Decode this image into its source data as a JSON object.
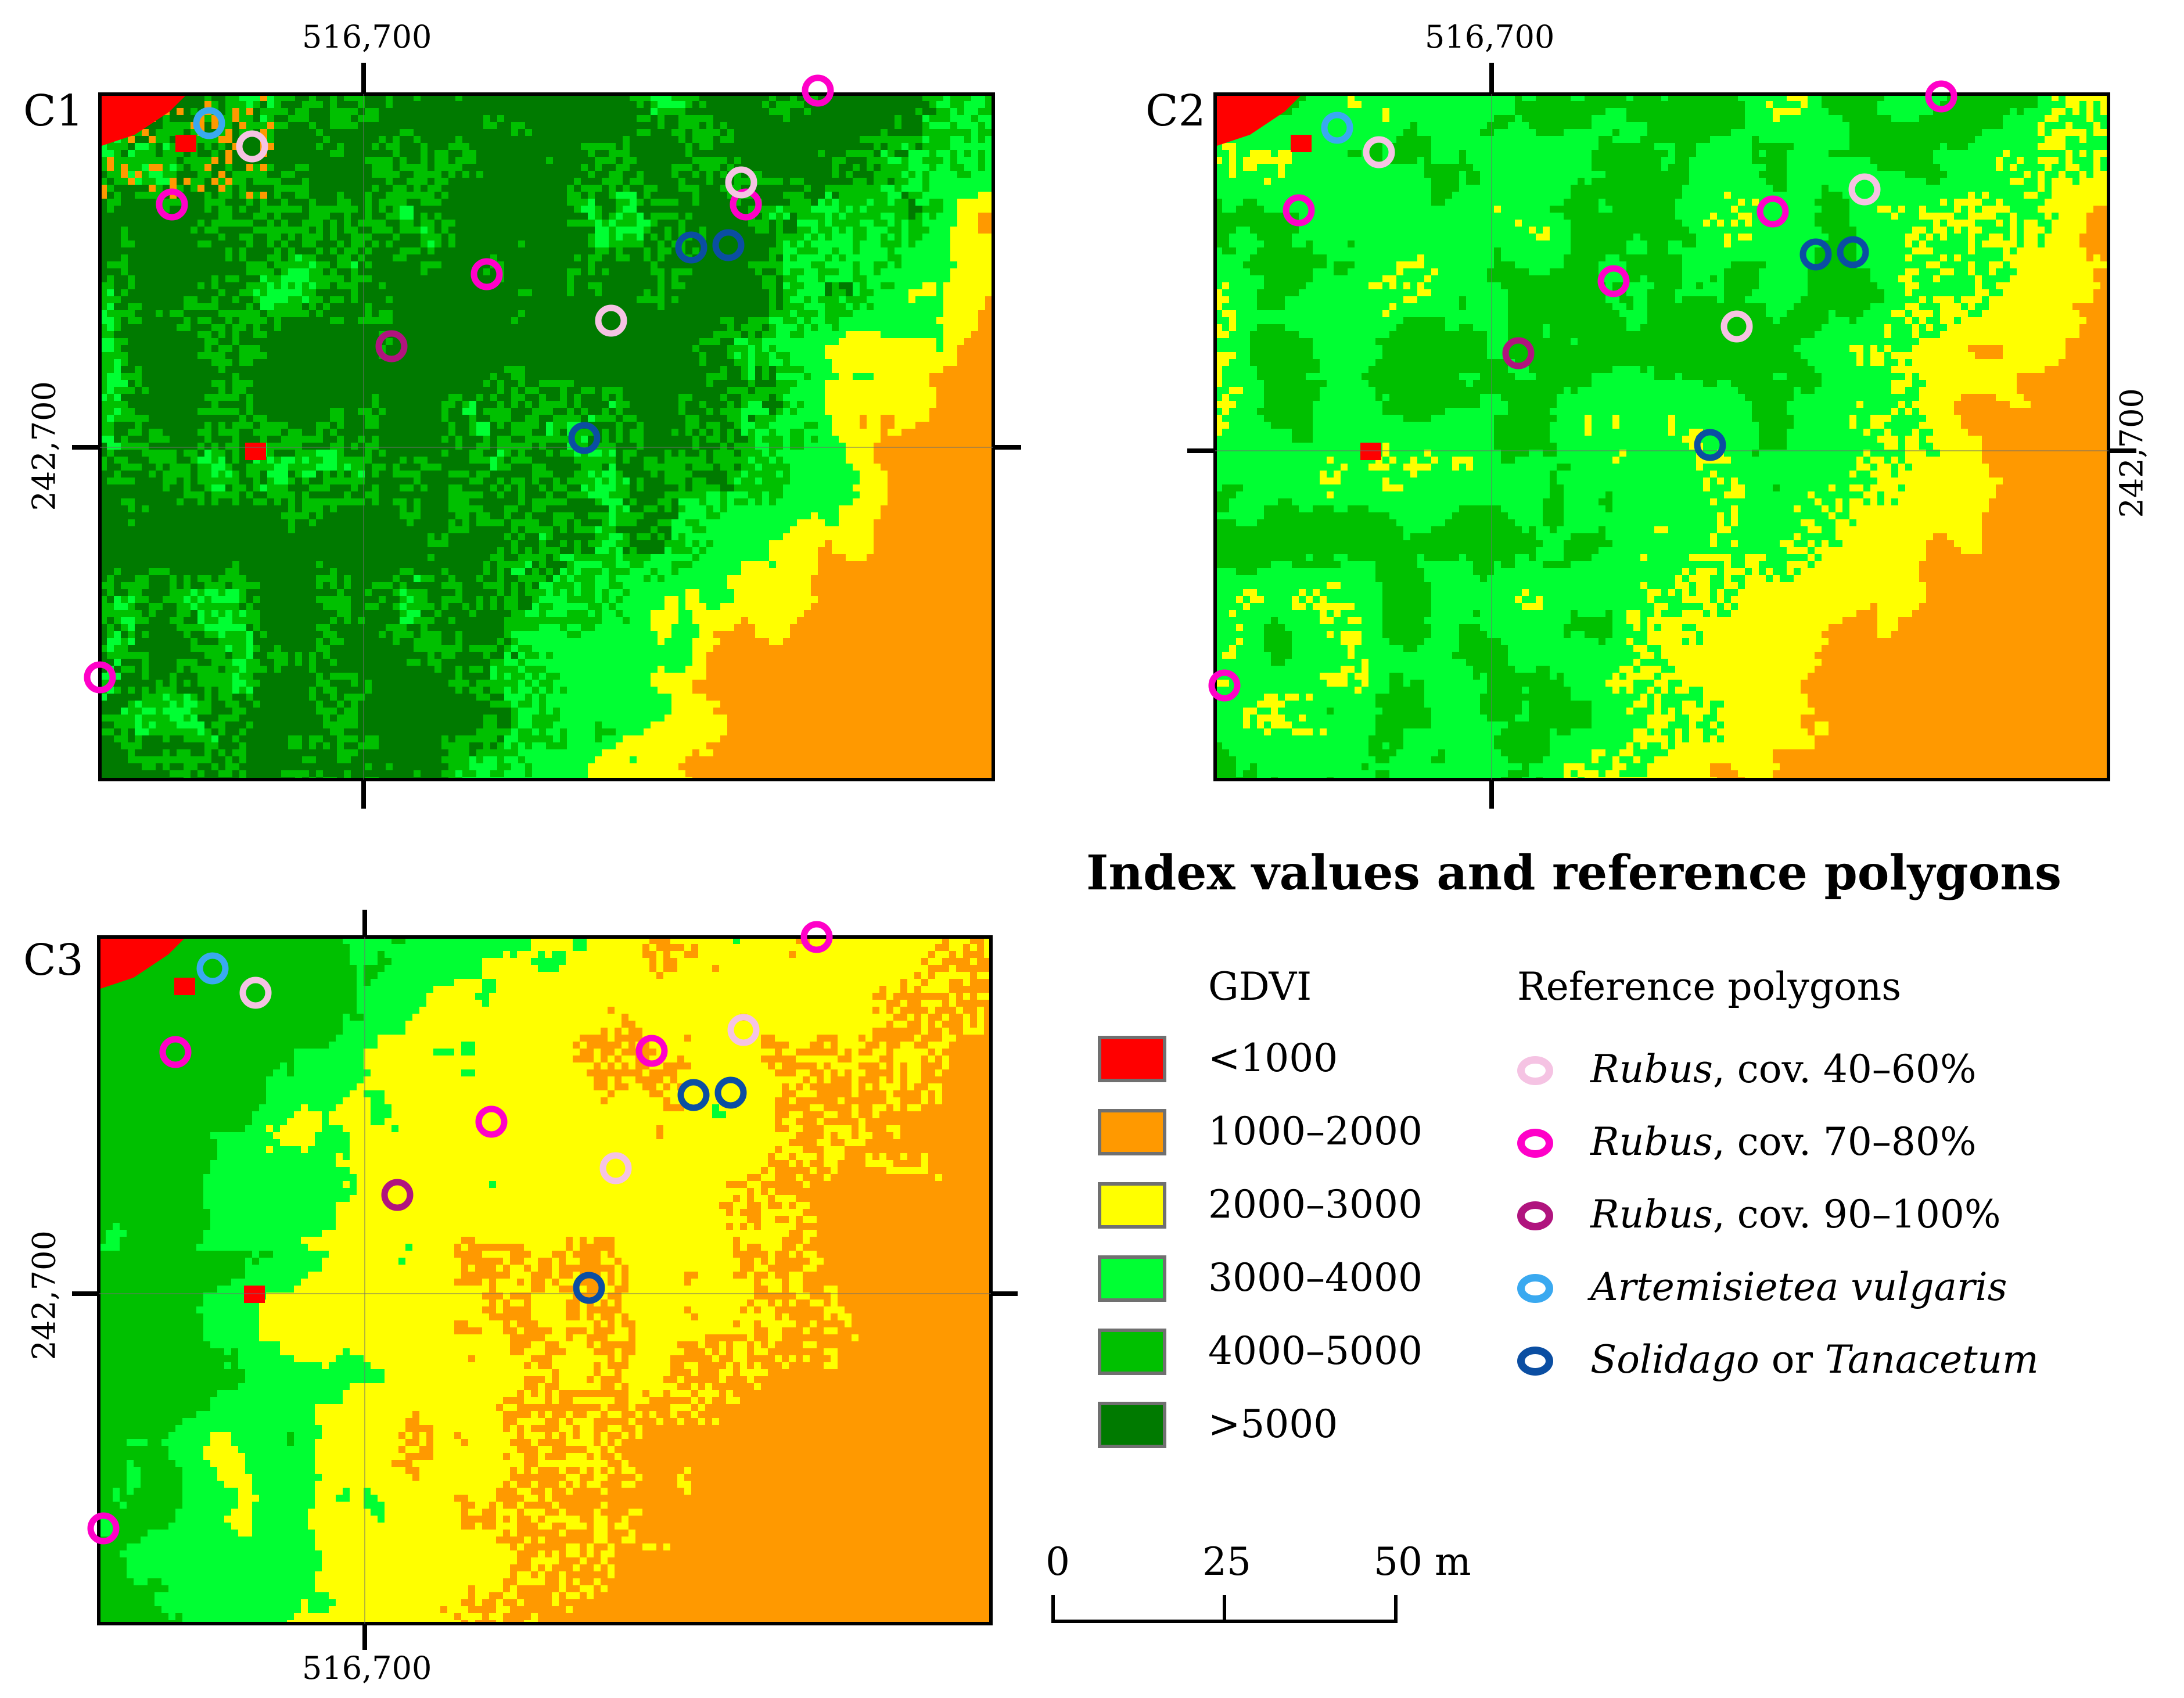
{
  "panels": [
    {
      "id": "C1",
      "label": "C1",
      "scheme": "c1",
      "x_label": "516,700",
      "y_label": "242,700"
    },
    {
      "id": "C2",
      "label": "C2",
      "scheme": "c2",
      "x_label": "516,700",
      "y_label": "242,700"
    },
    {
      "id": "C3",
      "label": "C3",
      "scheme": "c3",
      "x_label": "516,700",
      "y_label": "242,700"
    }
  ],
  "legend": {
    "title": "Index values and reference polygons",
    "gdvi_title": "GDVI",
    "gdvi_classes": [
      {
        "label": "<1000",
        "color": "#ff0000"
      },
      {
        "label": "1000–2000",
        "color": "#ff9900"
      },
      {
        "label": "2000–3000",
        "color": "#ffff00"
      },
      {
        "label": "3000–4000",
        "color": "#00ff33"
      },
      {
        "label": "4000–5000",
        "color": "#00c000"
      },
      {
        "label": ">5000",
        "color": "#007a00"
      }
    ],
    "ref_title": "Reference polygons",
    "ref_classes": [
      {
        "genus": "Rubus",
        "rest": ", cov. 40–60%",
        "color": "#f5c3e3"
      },
      {
        "genus": "Rubus",
        "rest": ", cov. 70–80%",
        "color": "#ff00c8"
      },
      {
        "genus": "Rubus",
        "rest": ", cov. 90–100%",
        "color": "#b0147e"
      },
      {
        "genus": "Artemisietea vulgaris",
        "rest": "",
        "color": "#3aa9f0"
      },
      {
        "genus": "Solidago",
        "mid": " or ",
        "genus2": "Tanacetum",
        "rest": "",
        "color": "#0b4ea2"
      }
    ]
  },
  "scale_bar": {
    "labels": [
      "0",
      "25",
      "50 m"
    ],
    "values": [
      0,
      25,
      50
    ],
    "unit": "m"
  }
}
